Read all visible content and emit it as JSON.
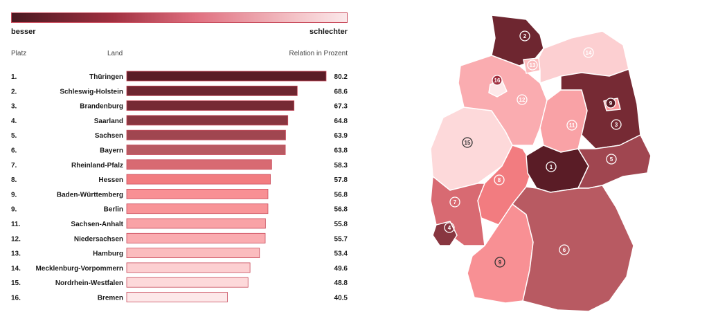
{
  "legend": {
    "left_label": "besser",
    "right_label": "schlechter"
  },
  "headers": {
    "rank": "Platz",
    "land": "Land",
    "value": "Relation in Prozent"
  },
  "chart_data": {
    "type": "bar",
    "orientation": "horizontal",
    "title": "",
    "xlabel": "",
    "ylabel": "",
    "xlim": [
      0,
      80.2
    ],
    "rows": [
      {
        "rank": "1.",
        "land": "Thüringen",
        "value": "80.2",
        "num": 80.2,
        "color": "#5a1c26"
      },
      {
        "rank": "2.",
        "land": "Schleswig-Holstein",
        "value": "68.6",
        "num": 68.6,
        "color": "#6e2630"
      },
      {
        "rank": "3.",
        "land": "Brandenburg",
        "value": "67.3",
        "num": 67.3,
        "color": "#762a34"
      },
      {
        "rank": "4.",
        "land": "Saarland",
        "value": "64.8",
        "num": 64.8,
        "color": "#883640"
      },
      {
        "rank": "5.",
        "land": "Sachsen",
        "value": "63.9",
        "num": 63.9,
        "color": "#a04650"
      },
      {
        "rank": "6.",
        "land": "Bayern",
        "value": "63.8",
        "num": 63.8,
        "color": "#b85a62"
      },
      {
        "rank": "7.",
        "land": "Rheinland-Pfalz",
        "value": "58.3",
        "num": 58.3,
        "color": "#d86a72"
      },
      {
        "rank": "8.",
        "land": "Hessen",
        "value": "57.8",
        "num": 57.8,
        "color": "#f27c80"
      },
      {
        "rank": "9.",
        "land": "Baden-Württemberg",
        "value": "56.8",
        "num": 56.8,
        "color": "#f89094"
      },
      {
        "rank": "9.",
        "land": "Berlin",
        "value": "56.8",
        "num": 56.8,
        "color": "#f89498"
      },
      {
        "rank": "11.",
        "land": "Sachsen-Anhalt",
        "value": "55.8",
        "num": 55.8,
        "color": "#f9a2a6"
      },
      {
        "rank": "12.",
        "land": "Niedersachsen",
        "value": "55.7",
        "num": 55.7,
        "color": "#faacb0"
      },
      {
        "rank": "13.",
        "land": "Hamburg",
        "value": "53.4",
        "num": 53.4,
        "color": "#fbbcbe"
      },
      {
        "rank": "14.",
        "land": "Mecklenburg-Vorpommern",
        "value": "49.6",
        "num": 49.6,
        "color": "#fccfd1"
      },
      {
        "rank": "15.",
        "land": "Nordrhein-Westfalen",
        "value": "48.8",
        "num": 48.8,
        "color": "#fdd9da"
      },
      {
        "rank": "16.",
        "land": "Bremen",
        "value": "40.5",
        "num": 40.5,
        "color": "#fde8e9"
      }
    ]
  },
  "map": {
    "regions": [
      {
        "name": "Schleswig-Holstein",
        "label": "2",
        "color": "#6e2630"
      },
      {
        "name": "Hamburg",
        "label": "13",
        "color": "#fbbcbe"
      },
      {
        "name": "Mecklenburg-Vorpommern",
        "label": "14",
        "color": "#fccfd1"
      },
      {
        "name": "Bremen",
        "label": "16",
        "color": "#fde8e9"
      },
      {
        "name": "Niedersachsen",
        "label": "12",
        "color": "#faacb0"
      },
      {
        "name": "Brandenburg",
        "label": "3",
        "color": "#762a34"
      },
      {
        "name": "Berlin",
        "label": "9",
        "color": "#f89498"
      },
      {
        "name": "Sachsen-Anhalt",
        "label": "11",
        "color": "#f9a2a6"
      },
      {
        "name": "Nordrhein-Westfalen",
        "label": "15",
        "color": "#fdd9da"
      },
      {
        "name": "Sachsen",
        "label": "5",
        "color": "#a04650"
      },
      {
        "name": "Thüringen",
        "label": "1",
        "color": "#5a1c26"
      },
      {
        "name": "Hessen",
        "label": "8",
        "color": "#f27c80"
      },
      {
        "name": "Rheinland-Pfalz",
        "label": "7",
        "color": "#d86a72"
      },
      {
        "name": "Saarland",
        "label": "4",
        "color": "#883640"
      },
      {
        "name": "Bayern",
        "label": "6",
        "color": "#b85a62"
      },
      {
        "name": "Baden-Württemberg",
        "label": "9",
        "color": "#f89094"
      }
    ]
  }
}
